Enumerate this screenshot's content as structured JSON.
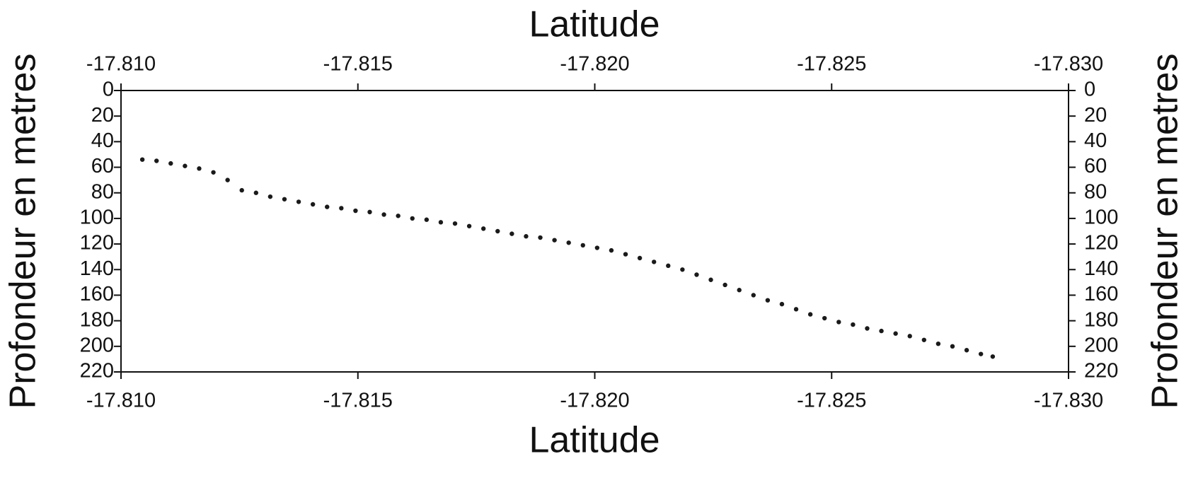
{
  "chart_data": {
    "type": "scatter",
    "xlabel": "Latitude",
    "ylabel": "Profondeur en metres",
    "color": "#1a1a1a",
    "xlim": [
      -17.81,
      -17.83
    ],
    "xticks": [
      {
        "value": -17.81,
        "label": "-17.810"
      },
      {
        "value": -17.815,
        "label": "-17.815"
      },
      {
        "value": -17.82,
        "label": "-17.820"
      },
      {
        "value": -17.825,
        "label": "-17.825"
      },
      {
        "value": -17.83,
        "label": "-17.830"
      }
    ],
    "ylim": [
      0,
      220
    ],
    "yticks": [
      0,
      20,
      40,
      60,
      80,
      100,
      120,
      140,
      160,
      180,
      200,
      220
    ],
    "y_inverted": true,
    "x": [
      -17.81045,
      -17.81075,
      -17.81105,
      -17.81135,
      -17.81165,
      -17.81195,
      -17.81225,
      -17.81255,
      -17.81285,
      -17.81315,
      -17.81345,
      -17.81375,
      -17.81405,
      -17.81435,
      -17.81465,
      -17.81495,
      -17.81525,
      -17.81555,
      -17.81585,
      -17.81615,
      -17.81645,
      -17.81675,
      -17.81705,
      -17.81735,
      -17.81765,
      -17.81795,
      -17.81825,
      -17.81855,
      -17.81885,
      -17.81915,
      -17.81945,
      -17.81975,
      -17.82005,
      -17.82035,
      -17.82065,
      -17.82095,
      -17.82125,
      -17.82155,
      -17.82185,
      -17.82215,
      -17.82245,
      -17.82275,
      -17.82305,
      -17.82335,
      -17.82365,
      -17.82395,
      -17.82425,
      -17.82455,
      -17.82485,
      -17.82515,
      -17.82545,
      -17.82575,
      -17.82605,
      -17.82635,
      -17.82665,
      -17.82695,
      -17.82725,
      -17.82755,
      -17.82785,
      -17.82815,
      -17.8284
    ],
    "values": [
      54,
      55,
      57,
      59,
      61,
      64,
      70,
      78,
      80,
      83,
      85,
      87,
      89,
      91,
      92,
      94,
      95,
      97,
      98,
      100,
      101,
      103,
      104,
      106,
      108,
      110,
      112,
      114,
      115,
      117,
      119,
      121,
      123,
      125,
      128,
      131,
      134,
      137,
      140,
      144,
      148,
      152,
      156,
      160,
      164,
      167,
      171,
      175,
      178,
      181,
      183,
      186,
      188,
      190,
      192,
      195,
      198,
      200,
      203,
      206,
      208
    ]
  }
}
